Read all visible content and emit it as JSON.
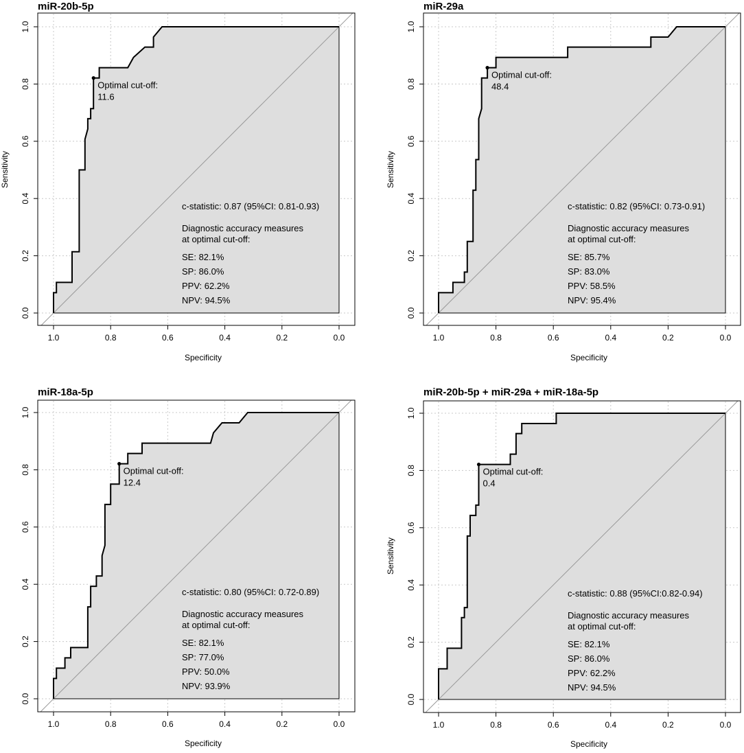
{
  "figure": {
    "xlabel": "Specificity",
    "ylabel": "Sensitivity",
    "cutoff_prefix": "Optimal cut-off:",
    "accuracy_title": "Diagnostic accuracy measures",
    "accuracy_subtitle": " at optimal cut-off:"
  },
  "colors": {
    "fill": "#dedede",
    "roc_line": "#000000",
    "diagonal": "#999999",
    "grid": "#c8c8c8"
  },
  "chart_data": [
    {
      "type": "line",
      "title": "miR-20b-5p",
      "xlabel": "Specificity",
      "ylabel": "Sensitivity",
      "xlim": [
        1.0,
        0.0
      ],
      "ylim": [
        0.0,
        1.0
      ],
      "xticks": [
        "1.0",
        "0.8",
        "0.6",
        "0.4",
        "0.2",
        "0.0"
      ],
      "yticks": [
        "0.0",
        "0.2",
        "0.4",
        "0.6",
        "0.8",
        "1.0"
      ],
      "grid": true,
      "roc_points": [
        [
          1.0,
          0.0
        ],
        [
          1.0,
          0.071
        ],
        [
          0.99,
          0.071
        ],
        [
          0.99,
          0.107
        ],
        [
          0.935,
          0.107
        ],
        [
          0.935,
          0.214
        ],
        [
          0.91,
          0.214
        ],
        [
          0.91,
          0.5
        ],
        [
          0.89,
          0.5
        ],
        [
          0.89,
          0.607
        ],
        [
          0.88,
          0.643
        ],
        [
          0.88,
          0.679
        ],
        [
          0.87,
          0.679
        ],
        [
          0.87,
          0.714
        ],
        [
          0.86,
          0.714
        ],
        [
          0.86,
          0.821
        ],
        [
          0.84,
          0.821
        ],
        [
          0.84,
          0.857
        ],
        [
          0.77,
          0.857
        ],
        [
          0.74,
          0.857
        ],
        [
          0.72,
          0.893
        ],
        [
          0.68,
          0.929
        ],
        [
          0.65,
          0.929
        ],
        [
          0.65,
          0.964
        ],
        [
          0.62,
          1.0
        ],
        [
          0.0,
          1.0
        ]
      ],
      "optimal_point": {
        "specificity": 0.86,
        "sensitivity": 0.821
      },
      "cutoff_value": "11.6",
      "c_statistic": "c-statistic: 0.87 (95%CI: 0.81-0.93)",
      "measures": [
        "SE: 82.1%",
        "SP: 86.0%",
        "PPV: 62.2%",
        "NPV: 94.5%"
      ]
    },
    {
      "type": "line",
      "title": "miR-29a",
      "xlabel": "Specificity",
      "ylabel": "Sensitivity",
      "xlim": [
        1.0,
        0.0
      ],
      "ylim": [
        0.0,
        1.0
      ],
      "xticks": [
        "1.0",
        "0.8",
        "0.6",
        "0.4",
        "0.2",
        "0.0"
      ],
      "yticks": [
        "0.0",
        "0.2",
        "0.4",
        "0.6",
        "0.8",
        "1.0"
      ],
      "grid": true,
      "roc_points": [
        [
          1.0,
          0.0
        ],
        [
          1.0,
          0.071
        ],
        [
          0.95,
          0.071
        ],
        [
          0.95,
          0.107
        ],
        [
          0.91,
          0.107
        ],
        [
          0.91,
          0.143
        ],
        [
          0.9,
          0.143
        ],
        [
          0.9,
          0.25
        ],
        [
          0.88,
          0.25
        ],
        [
          0.88,
          0.429
        ],
        [
          0.87,
          0.429
        ],
        [
          0.87,
          0.536
        ],
        [
          0.86,
          0.536
        ],
        [
          0.86,
          0.679
        ],
        [
          0.85,
          0.714
        ],
        [
          0.85,
          0.821
        ],
        [
          0.83,
          0.821
        ],
        [
          0.83,
          0.857
        ],
        [
          0.8,
          0.857
        ],
        [
          0.8,
          0.893
        ],
        [
          0.55,
          0.893
        ],
        [
          0.55,
          0.929
        ],
        [
          0.26,
          0.929
        ],
        [
          0.26,
          0.964
        ],
        [
          0.2,
          0.964
        ],
        [
          0.17,
          1.0
        ],
        [
          0.0,
          1.0
        ]
      ],
      "optimal_point": {
        "specificity": 0.83,
        "sensitivity": 0.857
      },
      "cutoff_value": "48.4",
      "c_statistic": "c-statistic: 0.82 (95%CI: 0.73-0.91)",
      "measures": [
        "SE: 85.7%",
        "SP: 83.0%",
        "PPV: 58.5%",
        "NPV: 95.4%"
      ]
    },
    {
      "type": "line",
      "title": "miR-18a-5p",
      "xlabel": "Specificity",
      "ylabel": "",
      "xlim": [
        1.0,
        0.0
      ],
      "ylim": [
        0.0,
        1.0
      ],
      "xticks": [
        "1.0",
        "0.8",
        "0.6",
        "0.4",
        "0.2",
        "0.0"
      ],
      "yticks": [
        "0.0",
        "0.2",
        "0.4",
        "0.6",
        "0.8",
        "1.0"
      ],
      "grid": true,
      "roc_points": [
        [
          1.0,
          0.0
        ],
        [
          1.0,
          0.071
        ],
        [
          0.99,
          0.071
        ],
        [
          0.99,
          0.107
        ],
        [
          0.96,
          0.107
        ],
        [
          0.96,
          0.143
        ],
        [
          0.94,
          0.143
        ],
        [
          0.94,
          0.179
        ],
        [
          0.88,
          0.179
        ],
        [
          0.88,
          0.321
        ],
        [
          0.87,
          0.321
        ],
        [
          0.87,
          0.393
        ],
        [
          0.85,
          0.393
        ],
        [
          0.85,
          0.429
        ],
        [
          0.83,
          0.429
        ],
        [
          0.83,
          0.5
        ],
        [
          0.82,
          0.536
        ],
        [
          0.82,
          0.679
        ],
        [
          0.8,
          0.679
        ],
        [
          0.8,
          0.75
        ],
        [
          0.77,
          0.75
        ],
        [
          0.77,
          0.821
        ],
        [
          0.74,
          0.821
        ],
        [
          0.74,
          0.857
        ],
        [
          0.69,
          0.857
        ],
        [
          0.69,
          0.893
        ],
        [
          0.45,
          0.893
        ],
        [
          0.44,
          0.929
        ],
        [
          0.41,
          0.964
        ],
        [
          0.35,
          0.964
        ],
        [
          0.32,
          1.0
        ],
        [
          0.0,
          1.0
        ]
      ],
      "optimal_point": {
        "specificity": 0.77,
        "sensitivity": 0.821
      },
      "cutoff_value": "12.4",
      "c_statistic": "c-statistic: 0.80 (95%CI: 0.72-0.89)",
      "measures": [
        "SE: 82.1%",
        "SP: 77.0%",
        "PPV: 50.0%",
        "NPV: 93.9%"
      ]
    },
    {
      "type": "line",
      "title": "miR-20b-5p + miR-29a + miR-18a-5p",
      "xlabel": "Specificity",
      "ylabel": "Sensitivity",
      "xlim": [
        1.0,
        0.0
      ],
      "ylim": [
        0.0,
        1.0
      ],
      "xticks": [
        "1.0",
        "0.8",
        "0.6",
        "0.4",
        "0.2",
        "0.0"
      ],
      "yticks": [
        "0.0",
        "0.2",
        "0.4",
        "0.6",
        "0.8",
        "1.0"
      ],
      "grid": true,
      "roc_points": [
        [
          1.0,
          0.0
        ],
        [
          1.0,
          0.107
        ],
        [
          0.97,
          0.107
        ],
        [
          0.97,
          0.179
        ],
        [
          0.92,
          0.179
        ],
        [
          0.92,
          0.286
        ],
        [
          0.91,
          0.286
        ],
        [
          0.91,
          0.321
        ],
        [
          0.9,
          0.321
        ],
        [
          0.9,
          0.571
        ],
        [
          0.89,
          0.571
        ],
        [
          0.89,
          0.643
        ],
        [
          0.87,
          0.643
        ],
        [
          0.87,
          0.679
        ],
        [
          0.86,
          0.679
        ],
        [
          0.86,
          0.821
        ],
        [
          0.75,
          0.821
        ],
        [
          0.75,
          0.857
        ],
        [
          0.73,
          0.857
        ],
        [
          0.73,
          0.929
        ],
        [
          0.71,
          0.929
        ],
        [
          0.71,
          0.964
        ],
        [
          0.59,
          0.964
        ],
        [
          0.59,
          1.0
        ],
        [
          0.0,
          1.0
        ]
      ],
      "optimal_point": {
        "specificity": 0.86,
        "sensitivity": 0.821
      },
      "cutoff_value": "0.4",
      "c_statistic": "c-statistic: 0.88 (95%CI:0.82-0.94)",
      "measures": [
        "SE: 82.1%",
        "SP: 86.0%",
        "PPV: 62.2%",
        "NPV: 94.5%"
      ]
    }
  ]
}
